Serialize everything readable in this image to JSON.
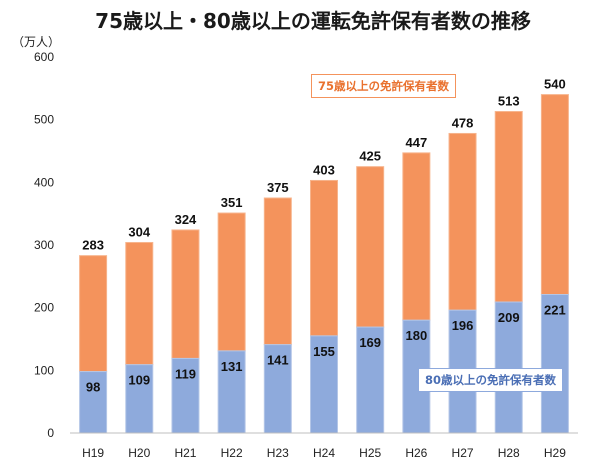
{
  "chart_data": {
    "type": "bar",
    "stacked": true,
    "title": "75歳以上・80歳以上の運転免許保有者数の推移",
    "unit_label": "（万人）",
    "categories": [
      "H19",
      "H20",
      "H21",
      "H22",
      "H23",
      "H24",
      "H25",
      "H26",
      "H27",
      "H28",
      "H29"
    ],
    "series": [
      {
        "name": "80歳以上の免許保有者数",
        "values": [
          98,
          109,
          119,
          131,
          141,
          155,
          169,
          180,
          196,
          209,
          221
        ],
        "color": "#8eaadc"
      },
      {
        "name": "75歳以上の免許保有者数",
        "totals": [
          283,
          304,
          324,
          351,
          375,
          403,
          425,
          447,
          478,
          513,
          540
        ],
        "color": "#f4935c"
      }
    ],
    "ylim": [
      0,
      600
    ],
    "yticks": [
      0,
      100,
      200,
      300,
      400,
      500,
      600
    ],
    "grid": false,
    "legend": [
      "top-right",
      "bottom-right"
    ]
  }
}
